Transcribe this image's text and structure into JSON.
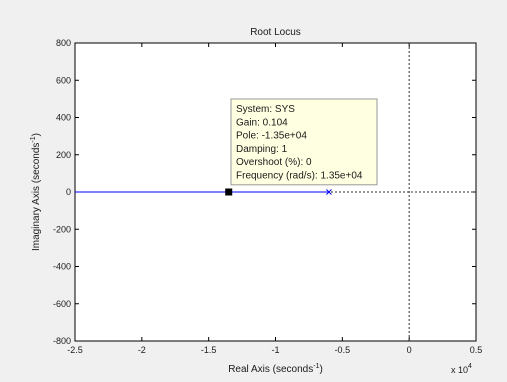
{
  "chart_data": {
    "type": "line",
    "title": "Root Locus",
    "xlabel": {
      "main": "Real Axis (seconds",
      "sup": "-1",
      "close": ")"
    },
    "ylabel": {
      "main": "Imaginary Axis (seconds",
      "sup": "-1",
      "close": ")"
    },
    "x_multiplier": {
      "base": "x 10",
      "exp": "4"
    },
    "xlim": [
      -2.5,
      0.5
    ],
    "ylim": [
      -800,
      800
    ],
    "x_ticks": [
      -2.5,
      -2,
      -1.5,
      -1,
      -0.5,
      0,
      0.5
    ],
    "x_tick_labels": [
      "-2.5",
      "-2",
      "-1.5",
      "-1",
      "-0.5",
      "0",
      "0.5"
    ],
    "y_ticks": [
      -800,
      -600,
      -400,
      -200,
      0,
      200,
      400,
      600,
      800
    ],
    "y_tick_labels": [
      "-800",
      "-600",
      "-400",
      "-200",
      "0",
      "200",
      "400",
      "600",
      "800"
    ],
    "grid": false,
    "reference_lines": {
      "x": 0,
      "y": 0,
      "style": "dotted"
    },
    "series": [
      {
        "x": [
          -2.5,
          -0.6
        ],
        "y": [
          0,
          0
        ],
        "color": "#0000ff"
      }
    ],
    "pole_marker": {
      "x": -0.6,
      "y": 0,
      "marker": "x",
      "color": "#0000ff"
    },
    "data_cursor": {
      "x": -1.35,
      "y": 0,
      "marker": "square",
      "color": "#000000"
    },
    "datatip": {
      "lines": [
        "System: SYS",
        "Gain: 0.104",
        "Pole: -1.35e+04",
        "Damping: 1",
        "Overshoot (%): 0",
        "Frequency (rad/s): 1.35e+04"
      ],
      "background": "#ffffe1",
      "border": "#999999"
    }
  }
}
